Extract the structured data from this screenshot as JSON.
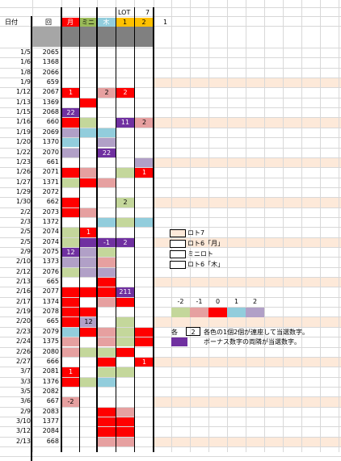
{
  "header": {
    "date_label": "日付",
    "round_label": "回",
    "lot_label": "LOT",
    "lot_value": "7",
    "col_labels": [
      "月",
      "ミニ",
      "木",
      "1",
      "2"
    ],
    "extra_label": "1"
  },
  "colors": {
    "red": "#ff0000",
    "pink": "#e6a0a0",
    "green": "#c4d79b",
    "cyan": "#92cddc",
    "lavender": "#b1a0c7",
    "purple": "#7030a0",
    "peach": "#fde9d9",
    "gray": "#808080",
    "yellow": "#ffc000",
    "olive": "#9bbb59"
  },
  "rows": [
    {
      "date": "1/5",
      "round": "2065",
      "cells": [
        "",
        "",
        "",
        "",
        ""
      ]
    },
    {
      "date": "1/6",
      "round": "1368",
      "cells": [
        "",
        "",
        "",
        "",
        ""
      ]
    },
    {
      "date": "1/8",
      "round": "2066",
      "cells": [
        "",
        "",
        "",
        "",
        ""
      ]
    },
    {
      "date": "1/9",
      "round": "659",
      "cells": [
        "",
        "",
        "",
        "",
        ""
      ]
    },
    {
      "date": "1/12",
      "round": "2067",
      "cells": [
        "1",
        "",
        "2",
        "2",
        ""
      ]
    },
    {
      "date": "1/13",
      "round": "1369",
      "cells": [
        "",
        "",
        "",
        "",
        ""
      ]
    },
    {
      "date": "1/15",
      "round": "2068",
      "cells": [
        "22",
        "",
        "",
        "",
        ""
      ]
    },
    {
      "date": "1/16",
      "round": "660",
      "cells": [
        "",
        "",
        "",
        "11",
        "2"
      ]
    },
    {
      "date": "1/19",
      "round": "2069",
      "cells": [
        "",
        "",
        "",
        "",
        ""
      ]
    },
    {
      "date": "1/20",
      "round": "1370",
      "cells": [
        "",
        "",
        "",
        "",
        ""
      ]
    },
    {
      "date": "1/22",
      "round": "2070",
      "cells": [
        "",
        "",
        "22",
        "",
        ""
      ]
    },
    {
      "date": "1/23",
      "round": "661",
      "cells": [
        "",
        "",
        "",
        "",
        ""
      ]
    },
    {
      "date": "1/26",
      "round": "2071",
      "cells": [
        "",
        "",
        "",
        "",
        "1"
      ]
    },
    {
      "date": "1/27",
      "round": "1371",
      "cells": [
        "",
        "",
        "",
        "",
        ""
      ]
    },
    {
      "date": "1/29",
      "round": "2072",
      "cells": [
        "",
        "",
        "",
        "",
        ""
      ]
    },
    {
      "date": "1/30",
      "round": "662",
      "cells": [
        "",
        "",
        "",
        "2",
        ""
      ]
    },
    {
      "date": "2/2",
      "round": "2073",
      "cells": [
        "",
        "",
        "",
        "",
        ""
      ]
    },
    {
      "date": "2/3",
      "round": "1372",
      "cells": [
        "",
        "",
        "",
        "",
        ""
      ]
    },
    {
      "date": "2/5",
      "round": "2074",
      "cells": [
        "",
        "1",
        "",
        "",
        ""
      ]
    },
    {
      "date": "2/5",
      "round": "2074",
      "cells": [
        "",
        "",
        "-1",
        "2",
        ""
      ]
    },
    {
      "date": "2/9",
      "round": "2075",
      "cells": [
        "12",
        "",
        "",
        "",
        ""
      ]
    },
    {
      "date": "2/10",
      "round": "1373",
      "cells": [
        "",
        "",
        "",
        "",
        ""
      ]
    },
    {
      "date": "2/12",
      "round": "2076",
      "cells": [
        "",
        "",
        "",
        "",
        ""
      ]
    },
    {
      "date": "2/13",
      "round": "665",
      "cells": [
        "",
        "",
        "",
        "",
        ""
      ]
    },
    {
      "date": "2/16",
      "round": "2077",
      "cells": [
        "",
        "",
        "",
        "211",
        ""
      ]
    },
    {
      "date": "2/17",
      "round": "1374",
      "cells": [
        "",
        "",
        "",
        "",
        ""
      ]
    },
    {
      "date": "2/19",
      "round": "2078",
      "cells": [
        "",
        "",
        "",
        "",
        ""
      ]
    },
    {
      "date": "2/20",
      "round": "665",
      "cells": [
        "",
        "12",
        "",
        "",
        ""
      ]
    },
    {
      "date": "2/23",
      "round": "2079",
      "cells": [
        "",
        "",
        "",
        "",
        ""
      ]
    },
    {
      "date": "2/24",
      "round": "1375",
      "cells": [
        "",
        "",
        "",
        "",
        ""
      ]
    },
    {
      "date": "2/26",
      "round": "2080",
      "cells": [
        "",
        "",
        "",
        "",
        ""
      ]
    },
    {
      "date": "2/27",
      "round": "666",
      "cells": [
        "",
        "",
        "",
        "",
        "1"
      ]
    },
    {
      "date": "3/7",
      "round": "2081",
      "cells": [
        "1",
        "",
        "",
        "",
        ""
      ]
    },
    {
      "date": "3/3",
      "round": "1376",
      "cells": [
        "",
        "",
        "",
        "",
        ""
      ]
    },
    {
      "date": "3/5",
      "round": "2082",
      "cells": [
        "",
        "",
        "",
        "",
        ""
      ]
    },
    {
      "date": "3/6",
      "round": "667",
      "cells": [
        "-2",
        "",
        "",
        "",
        ""
      ]
    },
    {
      "date": "2/9",
      "round": "2083",
      "cells": [
        "",
        "",
        "",
        "",
        ""
      ]
    },
    {
      "date": "3/10",
      "round": "1377",
      "cells": [
        "",
        "",
        "",
        "",
        ""
      ]
    },
    {
      "date": "3/12",
      "round": "2084",
      "cells": [
        "",
        "",
        "",
        "",
        ""
      ]
    },
    {
      "date": "2/13",
      "round": "668",
      "cells": [
        "",
        "",
        "",
        "",
        ""
      ]
    }
  ],
  "legend_types": [
    "ロト7",
    "ロト6「月」",
    "ミニロト",
    "ロト6「木」"
  ],
  "scale": {
    "labels": [
      "-2",
      "-1",
      "0",
      "1",
      "2"
    ]
  },
  "notes": {
    "each_label": "各",
    "each_value": "2",
    "note1": "各色の1個2個が連座して当選数字。",
    "note2": "ボーナス数字の両隣が当選数字。"
  }
}
